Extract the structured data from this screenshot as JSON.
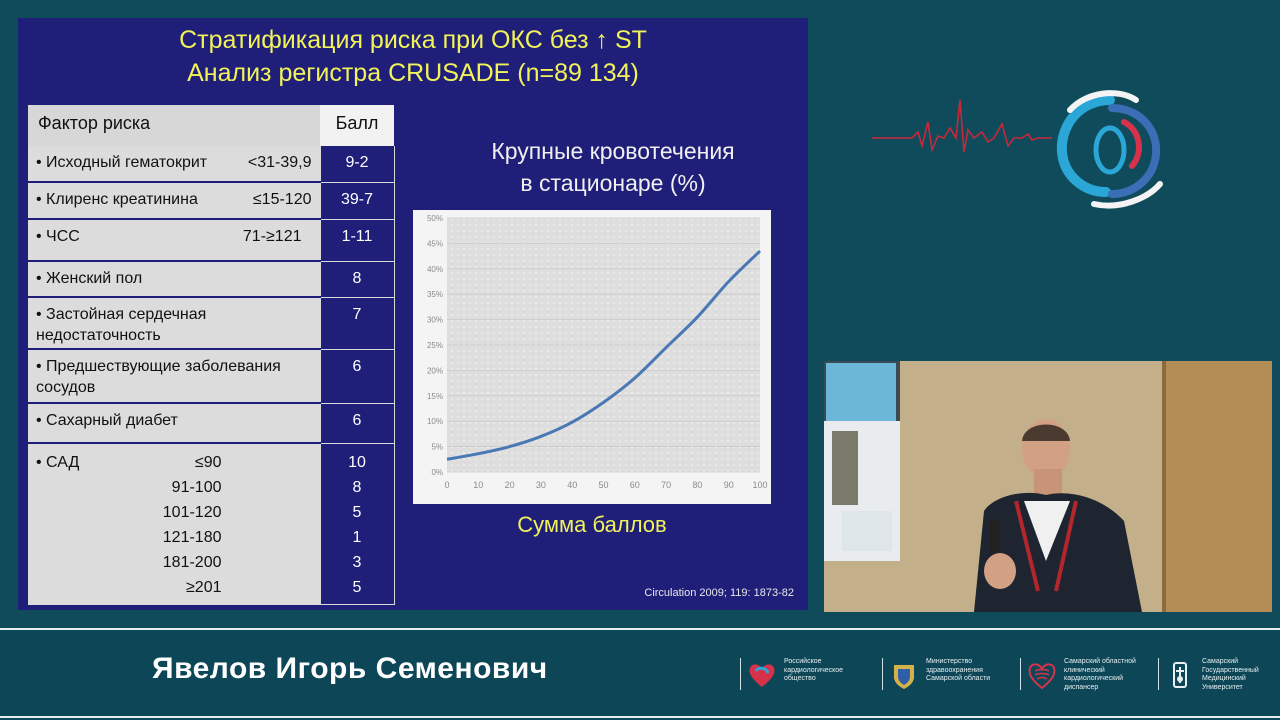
{
  "slide": {
    "title_line1": "Стратификация риска при ОКС без ↑ ST",
    "title_line2": "Анализ регистра CRUSADE (n=89 134)",
    "table": {
      "header_factor": "Фактор риска",
      "header_score": "Балл",
      "rows": [
        {
          "factor": "• Исходный гематокрит",
          "range": "<31-39,9",
          "score": "9-2"
        },
        {
          "factor": "• Клиренс креатинина",
          "range": "≤15-120",
          "score": "39-7"
        },
        {
          "factor": "• ЧСС",
          "range": "71-≥121",
          "score": "1-11"
        },
        {
          "factor": "• Женский пол",
          "range": "",
          "score": "8"
        },
        {
          "factor": "• Застойная сердечная недостаточность",
          "range": "",
          "score": "7"
        },
        {
          "factor": "• Предшествующие заболевания сосудов",
          "range": "",
          "score": "6"
        },
        {
          "factor": "• Сахарный диабет",
          "range": "",
          "score": "6"
        }
      ],
      "sad": {
        "factor": "• САД",
        "ranges": [
          "≤90",
          "91-100",
          "101-120",
          "121-180",
          "181-200",
          "≥201"
        ],
        "scores": [
          "10",
          "8",
          "5",
          "1",
          "3",
          "5"
        ]
      }
    },
    "chart_title_line1": "Крупные кровотечения",
    "chart_title_line2": "в стационаре (%)",
    "chart_xlabel": "Сумма баллов",
    "citation": "Circulation 2009; 119: 1873-82"
  },
  "chart_data": {
    "type": "line",
    "x": [
      0,
      10,
      20,
      30,
      40,
      50,
      60,
      70,
      80,
      90,
      100
    ],
    "y_tick_labels": [
      "0%",
      "5%",
      "10%",
      "15%",
      "20%",
      "25%",
      "30%",
      "35%",
      "40%",
      "45%",
      "50%"
    ],
    "series": [
      {
        "values": [
          2.5,
          3.6,
          5.0,
          7.0,
          9.8,
          13.7,
          18.5,
          24.5,
          30.5,
          37.5,
          43.5
        ]
      }
    ],
    "xlim": [
      0,
      100
    ],
    "ylim": [
      0,
      50
    ],
    "grid": true,
    "line_color": "#4a78b5"
  },
  "lower_third": {
    "speaker": "Явелов Игорь Семенович",
    "orgs": [
      {
        "icon": "heart-logo-icon",
        "text": "Российское\nкардиологическое\nобщество"
      },
      {
        "icon": "coat-of-arms-icon",
        "text": "Министерство\nздравоохранения\nСамарской области"
      },
      {
        "icon": "heart-lines-icon",
        "text": "Самарский областной\nклинический\nкардиологический\nдиспансер"
      },
      {
        "icon": "university-emblem-icon",
        "text": "Самарский\nГосударственный\nМедицинский\nУниверситет"
      }
    ]
  },
  "colors": {
    "slide_bg": "#1f1f7a",
    "title_yellow": "#f2f25a",
    "stage_bg": "#0f4b5b",
    "ecg_red": "#c8283a"
  }
}
